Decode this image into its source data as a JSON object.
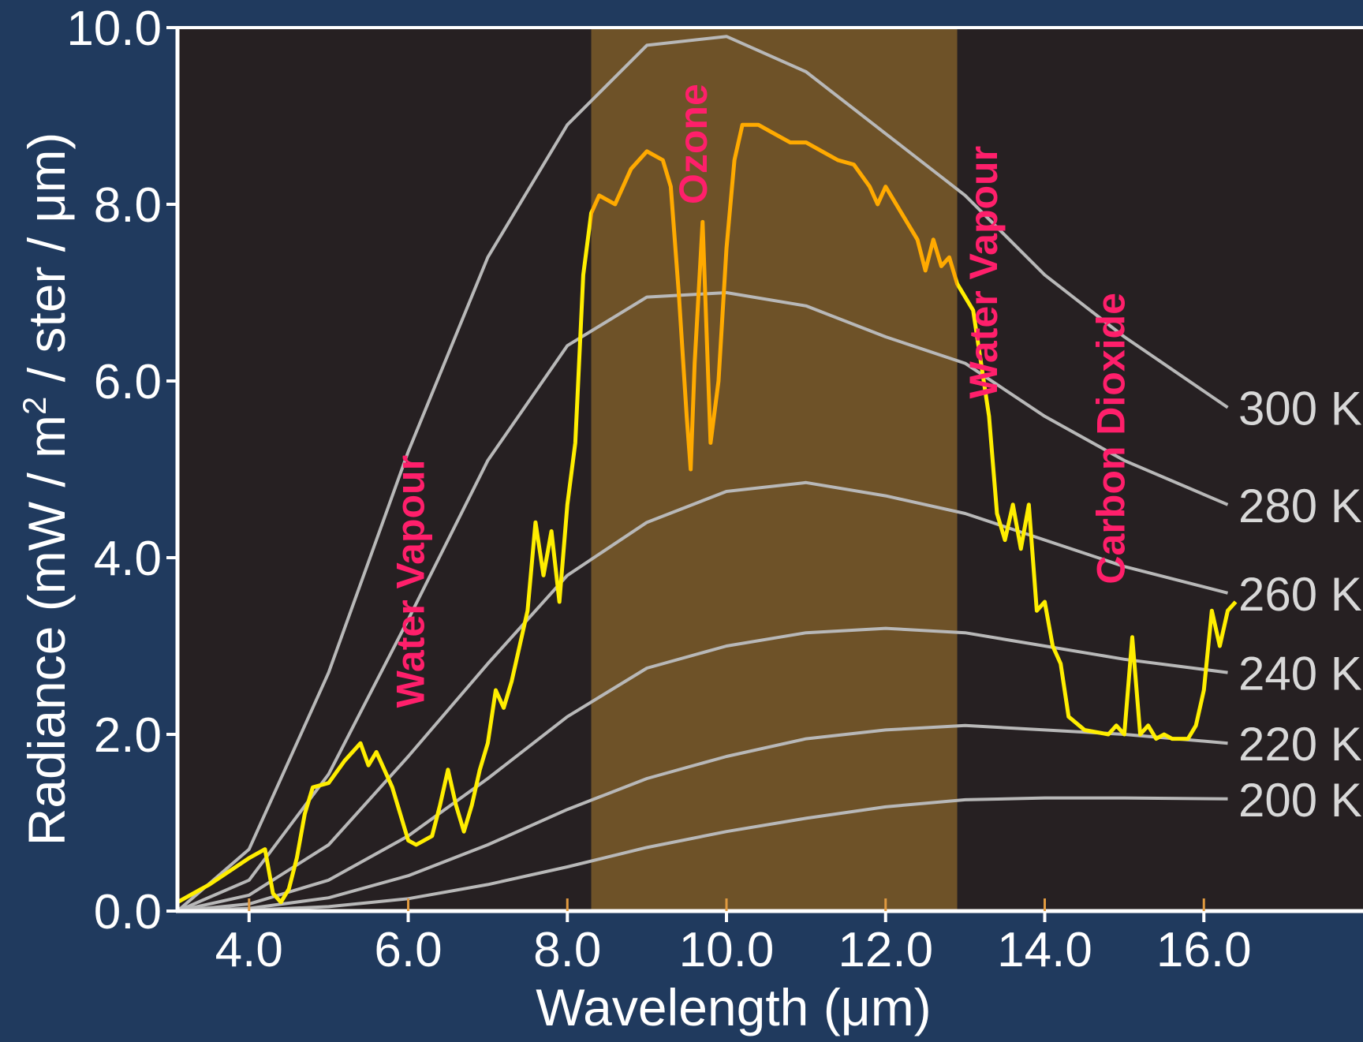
{
  "chart_data": {
    "type": "line",
    "xlabel": "Wavelength (μm)",
    "ylabel": "Radiance (mW / m² / ster / μm)",
    "ylabel_parts": {
      "before": "Radiance (mW / m",
      "sup": "2",
      "after": " / ster / μm)"
    },
    "xlim": [
      3.1,
      18.0
    ],
    "ylim": [
      0.0,
      10.0
    ],
    "x_ticks": [
      4.0,
      6.0,
      8.0,
      10.0,
      12.0,
      14.0,
      16.0
    ],
    "x_tick_labels": [
      "4.0",
      "6.0",
      "8.0",
      "10.0",
      "12.0",
      "14.0",
      "16.0"
    ],
    "y_ticks": [
      0.0,
      2.0,
      4.0,
      6.0,
      8.0,
      10.0
    ],
    "y_tick_labels": [
      "0.0",
      "2.0",
      "4.0",
      "6.0",
      "8.0",
      "10.0"
    ],
    "grid": false,
    "highlight_band": {
      "from": 8.3,
      "to": 12.9,
      "color": "#6e5228"
    },
    "colors": {
      "background": "#203a5e",
      "plot_background": "#262022",
      "axis": "#ffffff",
      "blackbody": "#b8b8b8",
      "measured": "#ffee00",
      "measured_in_band": "#ffaa00",
      "band_labels": "#ff1f6b"
    },
    "blackbody_x": [
      3.1,
      4.0,
      5.0,
      6.0,
      7.0,
      8.0,
      9.0,
      10.0,
      11.0,
      12.0,
      13.0,
      14.0,
      15.0,
      16.3
    ],
    "series": [
      {
        "name": "300 K",
        "values": [
          0.0,
          0.7,
          2.7,
          5.2,
          7.4,
          8.9,
          9.8,
          9.9,
          9.5,
          8.8,
          8.1,
          7.2,
          6.5,
          5.7
        ]
      },
      {
        "name": "280 K",
        "values": [
          0.0,
          0.35,
          1.55,
          3.3,
          5.1,
          6.4,
          6.95,
          7.0,
          6.85,
          6.5,
          6.2,
          5.6,
          5.1,
          4.6
        ]
      },
      {
        "name": "260 K",
        "values": [
          0.0,
          0.18,
          0.75,
          1.75,
          2.8,
          3.8,
          4.4,
          4.75,
          4.85,
          4.7,
          4.5,
          4.2,
          3.9,
          3.6
        ]
      },
      {
        "name": "240 K",
        "values": [
          0.0,
          0.08,
          0.35,
          0.85,
          1.5,
          2.2,
          2.75,
          3.0,
          3.15,
          3.2,
          3.15,
          3.0,
          2.85,
          2.7
        ]
      },
      {
        "name": "220 K",
        "values": [
          0.0,
          0.03,
          0.15,
          0.4,
          0.75,
          1.15,
          1.5,
          1.75,
          1.95,
          2.05,
          2.1,
          2.05,
          2.0,
          1.9
        ]
      },
      {
        "name": "200 K",
        "values": [
          0.0,
          0.01,
          0.05,
          0.14,
          0.3,
          0.5,
          0.72,
          0.9,
          1.05,
          1.18,
          1.26,
          1.28,
          1.28,
          1.27
        ]
      }
    ],
    "measured": {
      "x": [
        3.1,
        3.5,
        4.0,
        4.2,
        4.3,
        4.4,
        4.5,
        4.6,
        4.7,
        4.8,
        5.0,
        5.2,
        5.4,
        5.5,
        5.6,
        5.8,
        5.9,
        6.0,
        6.1,
        6.2,
        6.3,
        6.4,
        6.5,
        6.6,
        6.7,
        6.8,
        6.9,
        7.0,
        7.1,
        7.2,
        7.3,
        7.4,
        7.5,
        7.6,
        7.7,
        7.8,
        7.9,
        8.0,
        8.1,
        8.2,
        8.3,
        8.4,
        8.6,
        8.8,
        9.0,
        9.2,
        9.3,
        9.4,
        9.5,
        9.55,
        9.6,
        9.7,
        9.8,
        9.9,
        10.0,
        10.1,
        10.2,
        10.4,
        10.6,
        10.8,
        11.0,
        11.2,
        11.4,
        11.6,
        11.8,
        11.9,
        12.0,
        12.2,
        12.4,
        12.5,
        12.6,
        12.7,
        12.8,
        12.9,
        13.1,
        13.3,
        13.4,
        13.5,
        13.6,
        13.7,
        13.8,
        13.9,
        14.0,
        14.1,
        14.2,
        14.3,
        14.5,
        14.8,
        14.9,
        15.0,
        15.1,
        15.2,
        15.3,
        15.4,
        15.5,
        15.6,
        15.8,
        15.9,
        16.0,
        16.1,
        16.2,
        16.3,
        16.4
      ],
      "y": [
        0.1,
        0.3,
        0.6,
        0.7,
        0.2,
        0.1,
        0.25,
        0.6,
        1.1,
        1.4,
        1.45,
        1.7,
        1.9,
        1.65,
        1.8,
        1.4,
        1.1,
        0.8,
        0.75,
        0.8,
        0.85,
        1.2,
        1.6,
        1.2,
        0.9,
        1.2,
        1.6,
        1.9,
        2.5,
        2.3,
        2.6,
        3.0,
        3.4,
        4.4,
        3.8,
        4.3,
        3.5,
        4.6,
        5.3,
        7.2,
        7.9,
        8.1,
        8.0,
        8.4,
        8.6,
        8.5,
        8.2,
        7.0,
        5.6,
        5.0,
        6.2,
        7.8,
        5.3,
        6.0,
        7.5,
        8.5,
        8.9,
        8.9,
        8.8,
        8.7,
        8.7,
        8.6,
        8.5,
        8.45,
        8.2,
        8.0,
        8.2,
        7.9,
        7.6,
        7.25,
        7.6,
        7.3,
        7.4,
        7.1,
        6.8,
        5.6,
        4.5,
        4.2,
        4.6,
        4.1,
        4.6,
        3.4,
        3.5,
        3.0,
        2.8,
        2.2,
        2.05,
        2.0,
        2.1,
        2.0,
        3.1,
        2.0,
        2.1,
        1.95,
        2.0,
        1.95,
        1.95,
        2.1,
        2.5,
        3.4,
        3.0,
        3.4,
        3.5
      ]
    },
    "annotations": [
      {
        "text": "Water Vapour",
        "x": 6.2,
        "y": 2.3
      },
      {
        "text": "Ozone",
        "x": 9.75,
        "y": 8.0
      },
      {
        "text": "Water Vapour",
        "x": 13.4,
        "y": 5.8
      },
      {
        "text": "Carbon Dioxide",
        "x": 15.0,
        "y": 3.7
      }
    ]
  }
}
